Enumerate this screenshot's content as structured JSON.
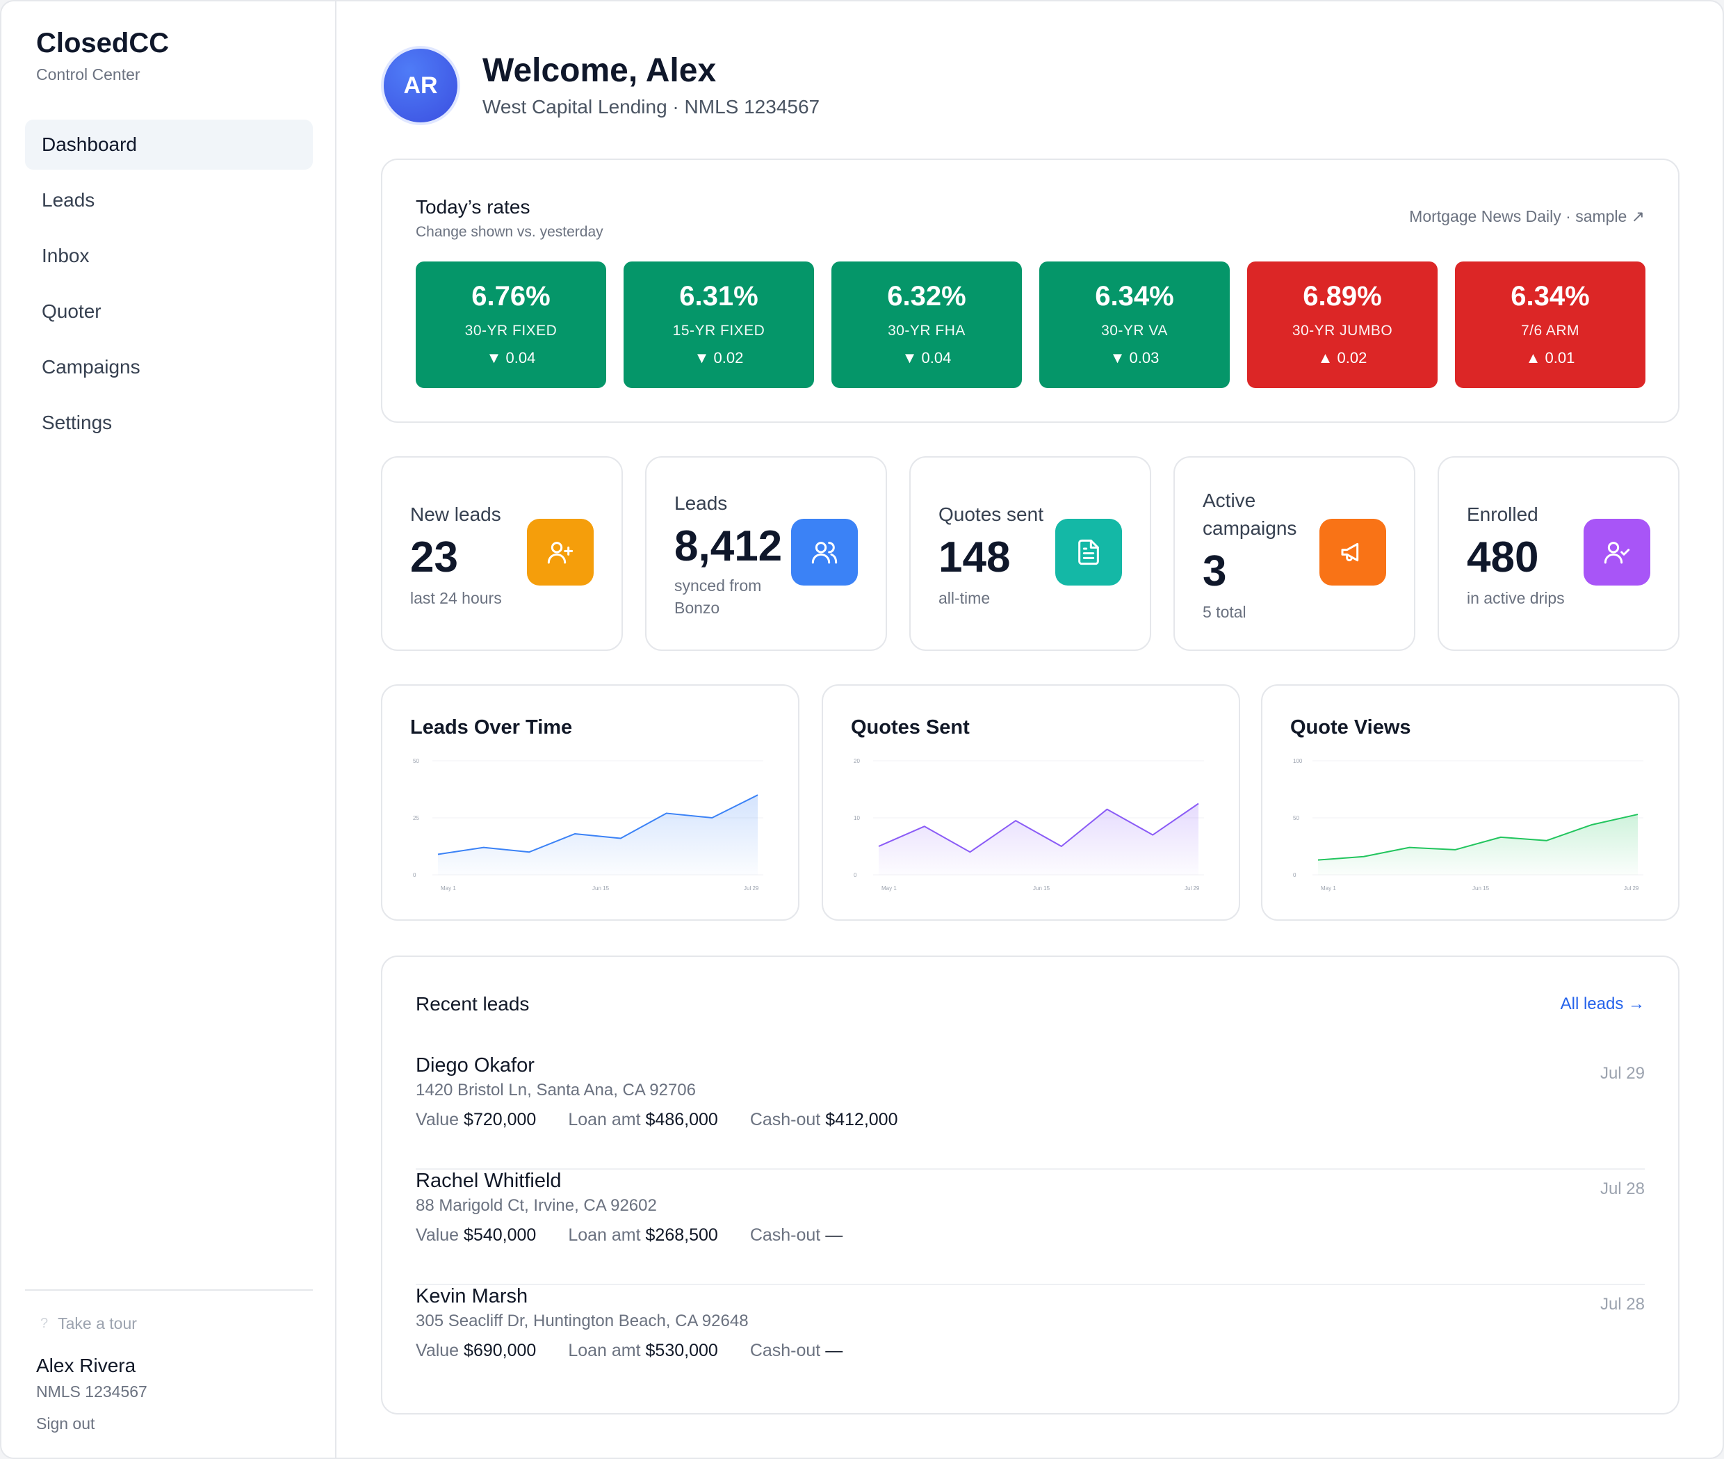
{
  "brand": {
    "name": "ClosedCC",
    "subtitle": "Control Center"
  },
  "nav": [
    {
      "label": "Dashboard",
      "active": true
    },
    {
      "label": "Leads"
    },
    {
      "label": "Inbox"
    },
    {
      "label": "Quoter"
    },
    {
      "label": "Campaigns"
    },
    {
      "label": "Settings"
    }
  ],
  "sidebar_footer": {
    "tour_label": "Take a tour",
    "user_name": "Alex Rivera",
    "user_nmls": "NMLS 1234567",
    "signout_label": "Sign out"
  },
  "header": {
    "avatar_initials": "AR",
    "welcome": "Welcome, Alex",
    "subline": "West Capital Lending · NMLS 1234567"
  },
  "rates": {
    "title": "Today’s rates",
    "subtitle": "Change shown vs. yesterday",
    "source": "Mortgage News Daily · sample ↗",
    "items": [
      {
        "value": "6.76%",
        "name": "30-YR FIXED",
        "change": "▼ 0.04",
        "direction": "down"
      },
      {
        "value": "6.31%",
        "name": "15-YR FIXED",
        "change": "▼ 0.02",
        "direction": "down"
      },
      {
        "value": "6.32%",
        "name": "30-YR FHA",
        "change": "▼ 0.04",
        "direction": "down"
      },
      {
        "value": "6.34%",
        "name": "30-YR VA",
        "change": "▼ 0.03",
        "direction": "down"
      },
      {
        "value": "6.89%",
        "name": "30-YR JUMBO",
        "change": "▲ 0.02",
        "direction": "up"
      },
      {
        "value": "6.34%",
        "name": "7/6 ARM",
        "change": "▲ 0.01",
        "direction": "up"
      }
    ]
  },
  "stats": [
    {
      "label": "New leads",
      "value": "23",
      "note": "last 24 hours",
      "icon": "user-plus-icon",
      "color": "#f59e0b"
    },
    {
      "label": "Leads",
      "value": "8,412",
      "note": "synced from Bonzo",
      "icon": "users-icon",
      "color": "#3b82f6"
    },
    {
      "label": "Quotes sent",
      "value": "148",
      "note": "all-time",
      "icon": "document-icon",
      "color": "#14b8a6"
    },
    {
      "label": "Active campaigns",
      "value": "3",
      "note": "5 total",
      "icon": "megaphone-icon",
      "color": "#f97316"
    },
    {
      "label": "Enrolled",
      "value": "480",
      "note": "in active drips",
      "icon": "user-check-icon",
      "color": "#a855f7"
    }
  ],
  "charts": [
    {
      "title": "Leads Over Time"
    },
    {
      "title": "Quotes Sent"
    },
    {
      "title": "Quote Views"
    }
  ],
  "chart_data": [
    {
      "type": "area",
      "title": "Leads Over Time",
      "x": [
        "",
        "",
        "",
        "",
        "",
        "",
        "",
        ""
      ],
      "x_tick_labels": [
        "May 1",
        "Jun 15",
        "Jul 29"
      ],
      "y_tick_labels": [
        "0",
        "25",
        "50"
      ],
      "ylim": [
        0,
        50
      ],
      "series": [
        {
          "values": [
            9,
            12,
            10,
            18,
            16,
            27,
            25,
            35
          ],
          "color": "#3b82f6"
        }
      ],
      "grid": true
    },
    {
      "type": "area",
      "title": "Quotes Sent",
      "x": [
        "",
        "",
        "",
        "",
        "",
        "",
        "",
        ""
      ],
      "x_tick_labels": [
        "May 1",
        "Jun 15",
        "Jul 29"
      ],
      "y_tick_labels": [
        "0",
        "10",
        "20"
      ],
      "ylim": [
        0,
        20
      ],
      "series": [
        {
          "values": [
            5,
            8.5,
            4,
            9.5,
            5,
            11.5,
            7,
            12.5
          ],
          "color": "#8b5cf6"
        }
      ],
      "grid": true
    },
    {
      "type": "area",
      "title": "Quote Views",
      "x": [
        "",
        "",
        "",
        "",
        "",
        "",
        "",
        ""
      ],
      "x_tick_labels": [
        "May 1",
        "Jun 15",
        "Jul 29"
      ],
      "y_tick_labels": [
        "0",
        "50",
        "100"
      ],
      "ylim": [
        0,
        100
      ],
      "series": [
        {
          "values": [
            13,
            16,
            24,
            22,
            33,
            30,
            44,
            53
          ],
          "color": "#22c55e"
        }
      ],
      "grid": true
    }
  ],
  "recent": {
    "title": "Recent leads",
    "all_label": "All leads →",
    "labels": {
      "value": "Value",
      "loan": "Loan amt",
      "cashout": "Cash-out"
    },
    "rows": [
      {
        "name": "Diego Okafor",
        "address": "1420 Bristol Ln, Santa Ana, CA 92706",
        "value": "$720,000",
        "loan": "$486,000",
        "cashout": "$412,000",
        "date": "Jul 29"
      },
      {
        "name": "Rachel Whitfield",
        "address": "88 Marigold Ct, Irvine, CA 92602",
        "value": "$540,000",
        "loan": "$268,500",
        "cashout": "—",
        "date": "Jul 28"
      },
      {
        "name": "Kevin Marsh",
        "address": "305 Seacliff Dr, Huntington Beach, CA 92648",
        "value": "$690,000",
        "loan": "$530,000",
        "cashout": "—",
        "date": "Jul 28"
      }
    ]
  }
}
